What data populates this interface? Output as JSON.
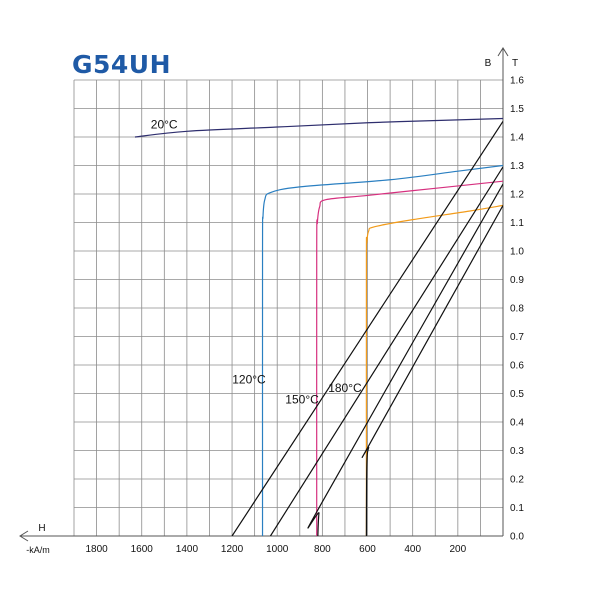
{
  "chart_data": {
    "type": "line",
    "title": "G54UH",
    "xlabel": "H",
    "xunit": "-kA/m",
    "ylabel": "B",
    "yunit": "T",
    "x_ticks": [
      "1800",
      "1600",
      "1400",
      "1200",
      "1000",
      "800",
      "600",
      "400",
      "200"
    ],
    "y_ticks": [
      "0.0",
      "0.1",
      "0.2",
      "0.3",
      "0.4",
      "0.5",
      "0.6",
      "0.7",
      "0.8",
      "0.9",
      "1.0",
      "1.1",
      "1.2",
      "1.3",
      "1.4",
      "1.5",
      "1.6"
    ],
    "x_range": [
      0,
      1900
    ],
    "y_range": [
      0,
      1.6
    ],
    "x_reversed": true,
    "grid": true,
    "colors": {
      "20C": "#2e2e6e",
      "120C": "#2a7fc1",
      "150C": "#d6307f",
      "180C": "#f29b1a",
      "load_line": "#111111",
      "title": "#1f5aa6"
    },
    "series": [
      {
        "name": "20°C",
        "color_key": "20C",
        "points": [
          [
            1630,
            1.4
          ],
          [
            1400,
            1.42
          ],
          [
            1000,
            1.435
          ],
          [
            600,
            1.45
          ],
          [
            200,
            1.46
          ],
          [
            0,
            1.465
          ]
        ]
      },
      {
        "name": "120°C",
        "color_key": "120C",
        "points": [
          [
            1065,
            0.0
          ],
          [
            1065,
            1.0
          ],
          [
            1063,
            1.12
          ],
          [
            1055,
            1.18
          ],
          [
            1030,
            1.205
          ],
          [
            900,
            1.225
          ],
          [
            500,
            1.25
          ],
          [
            200,
            1.28
          ],
          [
            0,
            1.3
          ]
        ]
      },
      {
        "name": "150°C",
        "color_key": "150C",
        "points": [
          [
            825,
            0.0
          ],
          [
            825,
            1.0
          ],
          [
            822,
            1.1
          ],
          [
            812,
            1.155
          ],
          [
            785,
            1.18
          ],
          [
            600,
            1.195
          ],
          [
            300,
            1.22
          ],
          [
            0,
            1.245
          ]
        ]
      },
      {
        "name": "180°C",
        "color_key": "180C",
        "points": [
          [
            605,
            0.0
          ],
          [
            605,
            0.95
          ],
          [
            603,
            1.03
          ],
          [
            595,
            1.07
          ],
          [
            570,
            1.085
          ],
          [
            400,
            1.11
          ],
          [
            150,
            1.14
          ],
          [
            0,
            1.16
          ]
        ]
      }
    ],
    "load_lines": [
      {
        "points": [
          [
            1200,
            0.0
          ],
          [
            0,
            1.455
          ]
        ]
      },
      {
        "points": [
          [
            1030,
            0.0
          ],
          [
            0,
            1.295
          ]
        ]
      },
      {
        "points": [
          [
            820,
            0.0
          ],
          [
            815,
            0.08
          ],
          [
            800,
            0.12
          ],
          [
            0,
            1.235
          ]
        ]
      },
      {
        "points": [
          [
            605,
            0.0
          ],
          [
            603,
            0.25
          ],
          [
            595,
            0.31
          ],
          [
            575,
            0.345
          ],
          [
            0,
            1.16
          ]
        ]
      }
    ],
    "annotations": [
      {
        "text": "20°C",
        "x": 1560,
        "y": 1.43,
        "anchor": "start"
      },
      {
        "text": "120°C",
        "x": 1125,
        "y": 0.535,
        "anchor": "middle"
      },
      {
        "text": "150°C",
        "x": 890,
        "y": 0.465,
        "anchor": "middle"
      },
      {
        "text": "180°C",
        "x": 700,
        "y": 0.505,
        "anchor": "middle"
      }
    ]
  }
}
